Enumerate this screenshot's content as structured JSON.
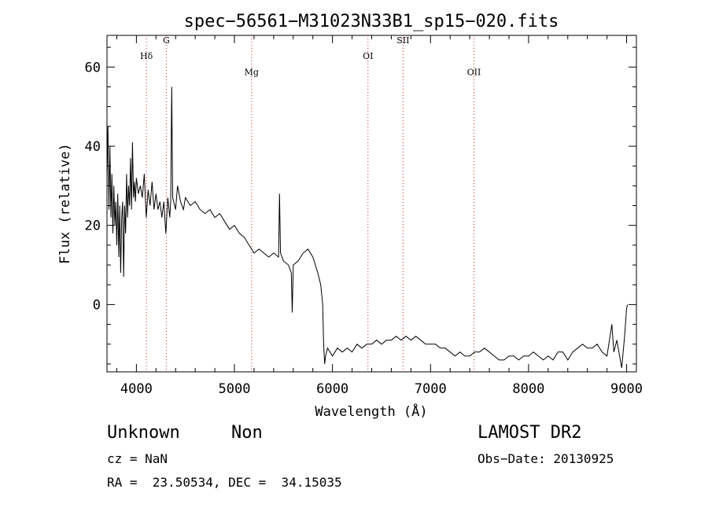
{
  "chart_data": {
    "type": "line",
    "title": "spec−56561−M31023N33B1_sp15−020.fits",
    "xlabel": "Wavelength (Å)",
    "ylabel": "Flux (relative)",
    "xlim": [
      3700,
      9100
    ],
    "ylim": [
      -17,
      68
    ],
    "xticks": [
      4000,
      5000,
      6000,
      7000,
      8000,
      9000
    ],
    "yticks": [
      0,
      20,
      40,
      60
    ],
    "grid": false,
    "series": [
      {
        "values": [
          [
            3700,
            32
          ],
          [
            3710,
            45
          ],
          [
            3720,
            24
          ],
          [
            3730,
            40
          ],
          [
            3740,
            22
          ],
          [
            3750,
            33
          ],
          [
            3760,
            18
          ],
          [
            3770,
            30
          ],
          [
            3780,
            20
          ],
          [
            3790,
            26
          ],
          [
            3800,
            15
          ],
          [
            3810,
            28
          ],
          [
            3820,
            12
          ],
          [
            3830,
            25
          ],
          [
            3840,
            8
          ],
          [
            3850,
            22
          ],
          [
            3860,
            26
          ],
          [
            3870,
            7
          ],
          [
            3880,
            25
          ],
          [
            3890,
            18
          ],
          [
            3900,
            33
          ],
          [
            3910,
            22
          ],
          [
            3920,
            30
          ],
          [
            3930,
            25
          ],
          [
            3940,
            37
          ],
          [
            3950,
            24
          ],
          [
            3960,
            41
          ],
          [
            3970,
            27
          ],
          [
            3980,
            31
          ],
          [
            3990,
            26
          ],
          [
            4000,
            32
          ],
          [
            4020,
            28
          ],
          [
            4040,
            30
          ],
          [
            4060,
            27
          ],
          [
            4080,
            33
          ],
          [
            4100,
            22
          ],
          [
            4120,
            29
          ],
          [
            4140,
            25
          ],
          [
            4160,
            31
          ],
          [
            4180,
            24
          ],
          [
            4200,
            28
          ],
          [
            4220,
            24
          ],
          [
            4240,
            26
          ],
          [
            4260,
            22
          ],
          [
            4280,
            26
          ],
          [
            4300,
            18
          ],
          [
            4320,
            27
          ],
          [
            4340,
            22
          ],
          [
            4350,
            26
          ],
          [
            4360,
            55
          ],
          [
            4370,
            27
          ],
          [
            4400,
            24
          ],
          [
            4420,
            30
          ],
          [
            4450,
            26
          ],
          [
            4480,
            24
          ],
          [
            4500,
            27
          ],
          [
            4550,
            25
          ],
          [
            4600,
            26
          ],
          [
            4650,
            24
          ],
          [
            4700,
            23
          ],
          [
            4750,
            24
          ],
          [
            4800,
            22
          ],
          [
            4850,
            23
          ],
          [
            4900,
            21
          ],
          [
            4950,
            19
          ],
          [
            5000,
            20
          ],
          [
            5050,
            18
          ],
          [
            5100,
            17
          ],
          [
            5150,
            15
          ],
          [
            5200,
            13
          ],
          [
            5250,
            14
          ],
          [
            5300,
            13
          ],
          [
            5350,
            12
          ],
          [
            5400,
            13
          ],
          [
            5450,
            12
          ],
          [
            5460,
            28
          ],
          [
            5470,
            13
          ],
          [
            5500,
            11
          ],
          [
            5550,
            10
          ],
          [
            5580,
            8
          ],
          [
            5590,
            -2
          ],
          [
            5600,
            10
          ],
          [
            5650,
            11
          ],
          [
            5700,
            13
          ],
          [
            5750,
            14
          ],
          [
            5800,
            12
          ],
          [
            5850,
            8
          ],
          [
            5880,
            5
          ],
          [
            5900,
            0
          ],
          [
            5910,
            -10
          ],
          [
            5920,
            -15
          ],
          [
            5930,
            -13
          ],
          [
            5950,
            -11
          ],
          [
            6000,
            -13
          ],
          [
            6050,
            -11
          ],
          [
            6100,
            -12
          ],
          [
            6150,
            -11
          ],
          [
            6200,
            -12
          ],
          [
            6250,
            -10
          ],
          [
            6300,
            -11
          ],
          [
            6350,
            -10
          ],
          [
            6400,
            -10
          ],
          [
            6450,
            -9
          ],
          [
            6500,
            -10
          ],
          [
            6550,
            -9
          ],
          [
            6600,
            -9
          ],
          [
            6650,
            -8
          ],
          [
            6700,
            -9
          ],
          [
            6750,
            -8
          ],
          [
            6800,
            -9
          ],
          [
            6850,
            -8
          ],
          [
            6900,
            -9
          ],
          [
            6950,
            -10
          ],
          [
            7000,
            -10
          ],
          [
            7050,
            -10
          ],
          [
            7100,
            -11
          ],
          [
            7150,
            -11
          ],
          [
            7200,
            -12
          ],
          [
            7250,
            -13
          ],
          [
            7300,
            -12
          ],
          [
            7350,
            -13
          ],
          [
            7400,
            -13
          ],
          [
            7450,
            -12
          ],
          [
            7500,
            -12
          ],
          [
            7550,
            -11
          ],
          [
            7600,
            -12
          ],
          [
            7650,
            -13
          ],
          [
            7700,
            -14
          ],
          [
            7750,
            -14
          ],
          [
            7800,
            -13
          ],
          [
            7850,
            -13
          ],
          [
            7900,
            -14
          ],
          [
            7950,
            -13
          ],
          [
            8000,
            -13
          ],
          [
            8050,
            -12
          ],
          [
            8100,
            -13
          ],
          [
            8150,
            -14
          ],
          [
            8200,
            -13
          ],
          [
            8250,
            -14
          ],
          [
            8300,
            -12
          ],
          [
            8350,
            -12
          ],
          [
            8400,
            -14
          ],
          [
            8450,
            -12
          ],
          [
            8500,
            -11
          ],
          [
            8550,
            -10
          ],
          [
            8600,
            -11
          ],
          [
            8650,
            -11
          ],
          [
            8700,
            -10
          ],
          [
            8750,
            -12
          ],
          [
            8800,
            -13
          ],
          [
            8850,
            -5
          ],
          [
            8870,
            -12
          ],
          [
            8900,
            -9
          ],
          [
            8950,
            -16
          ],
          [
            8980,
            -8
          ],
          [
            9000,
            -1
          ],
          [
            9010,
            0
          ]
        ]
      }
    ],
    "annotations": [
      {
        "label": "Hδ",
        "x": 4102,
        "y": 62
      },
      {
        "label": "G",
        "x": 4305,
        "y": 66
      },
      {
        "label": "Mg",
        "x": 5175,
        "y": 58
      },
      {
        "label": "OI",
        "x": 6362,
        "y": 62
      },
      {
        "label": "SII",
        "x": 6720,
        "y": 66
      },
      {
        "label": "OII",
        "x": 7443,
        "y": 58
      }
    ]
  },
  "info": {
    "object_class": "Unknown",
    "object_subclass": "Non",
    "survey": "LAMOST DR2",
    "cz": "cz = NaN",
    "obs_date": "Obs−Date: 20130925",
    "coords": "RA =  23.50534, DEC =  34.15035"
  }
}
